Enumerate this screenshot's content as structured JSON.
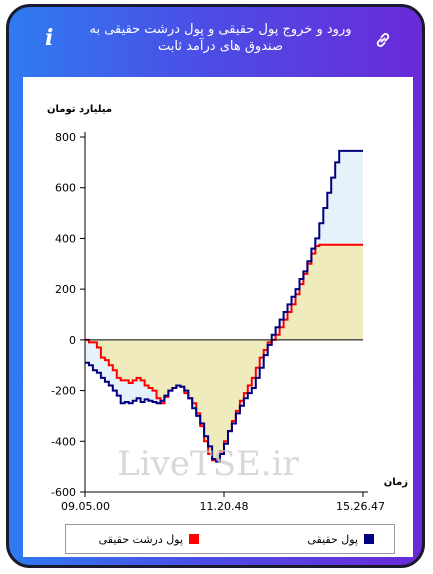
{
  "header": {
    "title": "ورود و خروج پول حقیقی و پول درشت حقیقی به صندوق های درآمد ثابت",
    "info_icon": "info-icon",
    "link_icon": "link-icon"
  },
  "colors": {
    "series1": "#000080",
    "series2": "#ff0000",
    "fill1": "#e6f2fa",
    "fill2": "#efebbd"
  },
  "watermark": "LiveTSE.ir",
  "chart_data": {
    "type": "line",
    "ylabel": "میلیارد تومان",
    "xlabel": "زمان",
    "ylim": [
      -600,
      800
    ],
    "yticks": [
      800,
      600,
      400,
      200,
      0,
      -200,
      -400,
      -600
    ],
    "xticks": [
      "09.05.00",
      "11.20.48",
      "15.26.47"
    ],
    "x": [
      0,
      1,
      2,
      3,
      4,
      5,
      6,
      7,
      8,
      9,
      10,
      11,
      12,
      13,
      14,
      15,
      16,
      17,
      18,
      19,
      20,
      21,
      22,
      23,
      24,
      25,
      26,
      27,
      28,
      29,
      30,
      31,
      32,
      33,
      34,
      35,
      36,
      37,
      38,
      39,
      40,
      41,
      42,
      43,
      44,
      45,
      46,
      47,
      48,
      49,
      50,
      51,
      52,
      53,
      54,
      55,
      56,
      57,
      58,
      59,
      60,
      61,
      62,
      63,
      64,
      65,
      66,
      67,
      68,
      69,
      70
    ],
    "series": [
      {
        "name": "پول حقیقی",
        "values": [
          -90,
          -100,
          -120,
          -130,
          -150,
          -165,
          -180,
          -200,
          -220,
          -250,
          -245,
          -250,
          -240,
          -230,
          -245,
          -235,
          -240,
          -245,
          -250,
          -240,
          -220,
          -200,
          -190,
          -180,
          -185,
          -200,
          -230,
          -270,
          -300,
          -330,
          -380,
          -420,
          -470,
          -480,
          -450,
          -410,
          -360,
          -330,
          -290,
          -260,
          -230,
          -210,
          -190,
          -150,
          -110,
          -60,
          -20,
          20,
          50,
          80,
          110,
          140,
          170,
          200,
          240,
          270,
          310,
          360,
          400,
          460,
          520,
          580,
          640,
          700,
          745,
          745,
          745,
          745,
          745,
          745,
          745
        ]
      },
      {
        "name": "پول درشت حقیقی",
        "values": [
          0,
          -10,
          -10,
          -30,
          -70,
          -80,
          -100,
          -120,
          -150,
          -160,
          -160,
          -170,
          -160,
          -150,
          -160,
          -180,
          -190,
          -200,
          -230,
          -250,
          -225,
          -200,
          -190,
          -180,
          -185,
          -210,
          -230,
          -250,
          -290,
          -340,
          -400,
          -450,
          -475,
          -470,
          -440,
          -400,
          -360,
          -320,
          -280,
          -240,
          -210,
          -180,
          -150,
          -110,
          -70,
          -40,
          -10,
          0,
          20,
          50,
          80,
          110,
          140,
          180,
          220,
          260,
          300,
          340,
          370,
          375,
          375,
          375,
          375,
          375,
          375,
          375,
          375,
          375,
          375,
          375,
          375
        ]
      }
    ],
    "grid": false,
    "legend_position": "bottom"
  }
}
